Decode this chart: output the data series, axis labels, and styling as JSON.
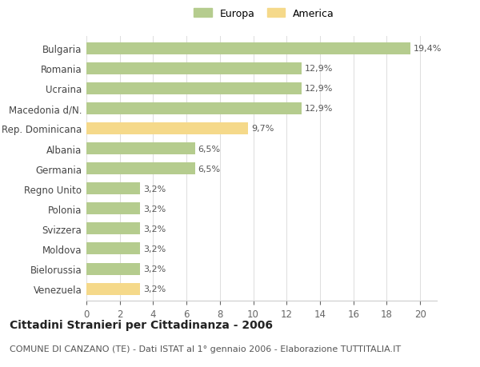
{
  "countries": [
    "Bulgaria",
    "Romania",
    "Ucraina",
    "Macedonia d/N.",
    "Rep. Dominicana",
    "Albania",
    "Germania",
    "Regno Unito",
    "Polonia",
    "Svizzera",
    "Moldova",
    "Bielorussia",
    "Venezuela"
  ],
  "values": [
    19.4,
    12.9,
    12.9,
    12.9,
    9.7,
    6.5,
    6.5,
    3.2,
    3.2,
    3.2,
    3.2,
    3.2,
    3.2
  ],
  "labels": [
    "19,4%",
    "12,9%",
    "12,9%",
    "12,9%",
    "9,7%",
    "6,5%",
    "6,5%",
    "3,2%",
    "3,2%",
    "3,2%",
    "3,2%",
    "3,2%",
    "3,2%"
  ],
  "continents": [
    "Europa",
    "Europa",
    "Europa",
    "Europa",
    "America",
    "Europa",
    "Europa",
    "Europa",
    "Europa",
    "Europa",
    "Europa",
    "Europa",
    "America"
  ],
  "color_europa": "#b5cc8e",
  "color_america": "#f5d98a",
  "background_color": "#ffffff",
  "title": "Cittadini Stranieri per Cittadinanza - 2006",
  "subtitle": "COMUNE DI CANZANO (TE) - Dati ISTAT al 1° gennaio 2006 - Elaborazione TUTTITALIA.IT",
  "xlim": [
    0,
    21
  ],
  "xticks": [
    0,
    2,
    4,
    6,
    8,
    10,
    12,
    14,
    16,
    18,
    20
  ],
  "legend_europa": "Europa",
  "legend_america": "America",
  "title_fontsize": 10,
  "subtitle_fontsize": 8,
  "tick_fontsize": 8.5,
  "label_fontsize": 8
}
